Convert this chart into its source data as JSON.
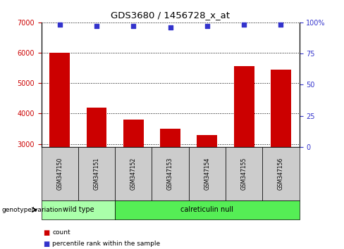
{
  "title": "GDS3680 / 1456728_x_at",
  "samples": [
    "GSM347150",
    "GSM347151",
    "GSM347152",
    "GSM347153",
    "GSM347154",
    "GSM347155",
    "GSM347156"
  ],
  "counts": [
    6000,
    4200,
    3800,
    3500,
    3300,
    5550,
    5450
  ],
  "percentiles": [
    98,
    97,
    97,
    96,
    97,
    98,
    98
  ],
  "ylim_left": [
    2900,
    7000
  ],
  "ylim_right": [
    0,
    100
  ],
  "yticks_left": [
    3000,
    4000,
    5000,
    6000,
    7000
  ],
  "yticks_right": [
    0,
    25,
    50,
    75,
    100
  ],
  "bar_color": "#cc0000",
  "dot_color": "#3333cc",
  "groups": [
    {
      "label": "wild type",
      "n_samples": 2,
      "color": "#aaffaa"
    },
    {
      "label": "calreticulin null",
      "n_samples": 5,
      "color": "#55ee55"
    }
  ],
  "xlabel_genotype": "genotype/variation",
  "legend_count_label": "count",
  "legend_pct_label": "percentile rank within the sample",
  "bg_color": "#ffffff",
  "tick_label_color_left": "#cc0000",
  "tick_label_color_right": "#3333cc",
  "sample_box_color": "#cccccc",
  "figwidth": 4.88,
  "figheight": 3.54,
  "dpi": 100
}
